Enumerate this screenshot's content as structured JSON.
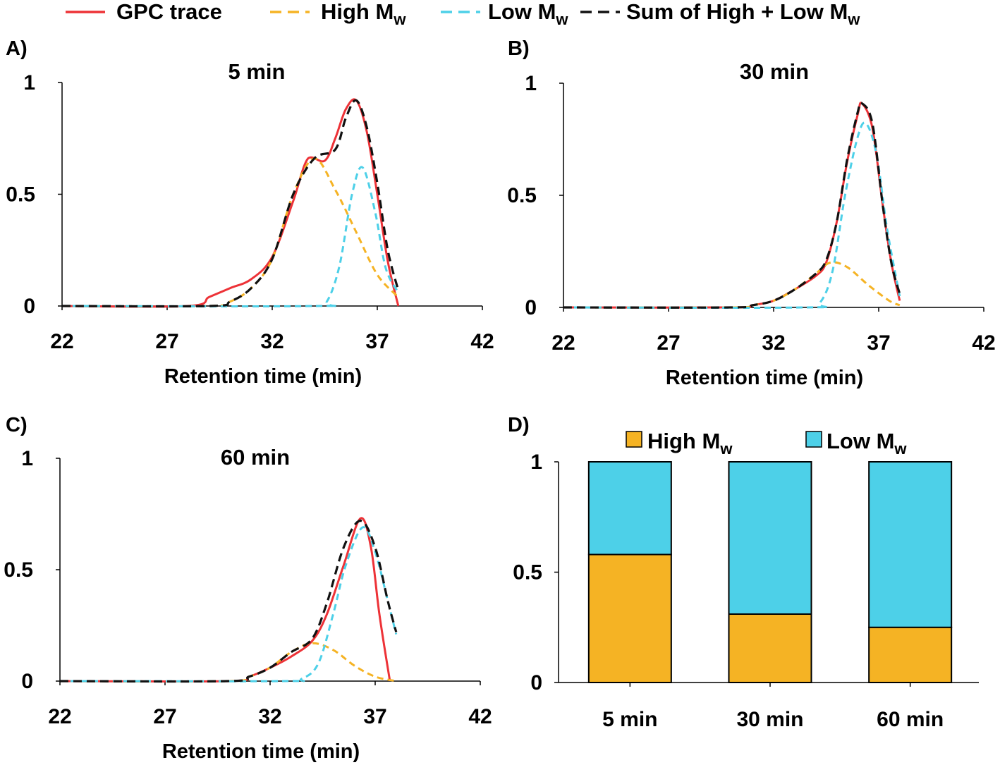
{
  "legend": [
    {
      "key": "gpc",
      "label": "GPC trace",
      "label_main": "GPC trace",
      "label_sub": "",
      "label_tail": "",
      "color": "#ED3237",
      "dash": "solid"
    },
    {
      "key": "high",
      "label": "High Mw",
      "label_main": "High M",
      "label_sub": "w",
      "label_tail": "",
      "color": "#F5B324",
      "dash": "dashed"
    },
    {
      "key": "low",
      "label": "Low Mw",
      "label_main": "Low M",
      "label_sub": "w",
      "label_tail": "",
      "color": "#4DD0E8",
      "dash": "dashed"
    },
    {
      "key": "sum",
      "label": "Sum of High + Low Mw",
      "label_main": "Sum of High + Low M",
      "label_sub": "w",
      "label_tail": "",
      "color": "#111111",
      "dash": "dashed"
    }
  ],
  "chart_data": [
    {
      "type": "line",
      "panel": "A)",
      "title": "5 min",
      "xlabel": "Retention time (min)",
      "ylabel": "",
      "xlim": [
        22,
        42
      ],
      "ylim": [
        0,
        1
      ],
      "xticks": [
        "22",
        "27",
        "32",
        "37",
        "42"
      ],
      "yticks": [
        "0",
        "0.5",
        "1"
      ],
      "series": [
        {
          "key": "gpc",
          "name": "GPC trace",
          "x": [
            22,
            28,
            29,
            30,
            31,
            32,
            33,
            33.7,
            34.5,
            35,
            35.5,
            36,
            36.5,
            37,
            37.5,
            38
          ],
          "y": [
            0,
            0,
            0.04,
            0.08,
            0.12,
            0.22,
            0.47,
            0.66,
            0.65,
            0.75,
            0.88,
            0.92,
            0.78,
            0.5,
            0.2,
            0
          ]
        },
        {
          "key": "high",
          "name": "High Mw",
          "x": [
            22,
            29,
            30,
            31,
            32,
            33,
            34,
            35,
            36,
            37,
            38
          ],
          "y": [
            0,
            0,
            0.02,
            0.08,
            0.21,
            0.5,
            0.66,
            0.52,
            0.33,
            0.14,
            0.04
          ]
        },
        {
          "key": "low",
          "name": "Low Mw",
          "x": [
            22,
            34,
            34.6,
            35.2,
            35.8,
            36.3,
            36.9,
            37.4,
            38
          ],
          "y": [
            0,
            0,
            0.02,
            0.18,
            0.5,
            0.62,
            0.42,
            0.17,
            0.06
          ]
        },
        {
          "key": "sum",
          "name": "Sum of High + Low Mw",
          "x": [
            22,
            29,
            30,
            31,
            32,
            33,
            34,
            35,
            35.5,
            36,
            36.5,
            37,
            37.5,
            38
          ],
          "y": [
            0,
            0,
            0.02,
            0.08,
            0.21,
            0.5,
            0.66,
            0.7,
            0.84,
            0.92,
            0.8,
            0.55,
            0.25,
            0.07
          ]
        }
      ]
    },
    {
      "type": "line",
      "panel": "B)",
      "title": "30 min",
      "xlabel": "Retention time (min)",
      "ylabel": "",
      "xlim": [
        22,
        42
      ],
      "ylim": [
        0,
        1
      ],
      "xticks": [
        "22",
        "27",
        "32",
        "37",
        "42"
      ],
      "yticks": [
        "0",
        "0.5",
        "1"
      ],
      "series": [
        {
          "key": "gpc",
          "name": "GPC trace",
          "x": [
            22,
            30,
            31,
            32,
            33,
            34,
            34.5,
            35,
            35.5,
            36,
            36.2,
            36.7,
            37.2,
            37.6,
            38
          ],
          "y": [
            0,
            0,
            0.01,
            0.03,
            0.08,
            0.14,
            0.2,
            0.38,
            0.65,
            0.86,
            0.91,
            0.8,
            0.45,
            0.2,
            0.03
          ]
        },
        {
          "key": "high",
          "name": "High Mw",
          "x": [
            22,
            30,
            31,
            32,
            33,
            34,
            34.7,
            35.5,
            36.5,
            37.5,
            38
          ],
          "y": [
            0,
            0,
            0.01,
            0.03,
            0.08,
            0.15,
            0.2,
            0.18,
            0.1,
            0.03,
            0.01
          ]
        },
        {
          "key": "low",
          "name": "Low Mw",
          "x": [
            22,
            33.5,
            34.2,
            34.8,
            35.4,
            36,
            36.4,
            36.9,
            37.4,
            38
          ],
          "y": [
            0,
            0,
            0.02,
            0.16,
            0.5,
            0.76,
            0.82,
            0.68,
            0.35,
            0.05
          ]
        },
        {
          "key": "sum",
          "name": "Sum of High + Low Mw",
          "x": [
            22,
            30,
            31,
            32,
            33,
            34,
            34.5,
            35,
            35.5,
            36,
            36.2,
            36.7,
            37.2,
            37.6,
            38
          ],
          "y": [
            0,
            0,
            0.01,
            0.03,
            0.08,
            0.15,
            0.21,
            0.38,
            0.66,
            0.87,
            0.91,
            0.82,
            0.45,
            0.2,
            0.06
          ]
        }
      ]
    },
    {
      "type": "line",
      "panel": "C)",
      "title": "60 min",
      "xlabel": "Retention time (min)",
      "ylabel": "",
      "xlim": [
        22,
        42
      ],
      "ylim": [
        0,
        1
      ],
      "xticks": [
        "22",
        "27",
        "32",
        "37",
        "42"
      ],
      "yticks": [
        "0",
        "0.5",
        "1"
      ],
      "series": [
        {
          "key": "gpc",
          "name": "GPC trace",
          "x": [
            22,
            30,
            31,
            32,
            33,
            34,
            34.7,
            35.5,
            36.3,
            36.8,
            37.2,
            37.7
          ],
          "y": [
            0,
            0,
            0.02,
            0.06,
            0.11,
            0.18,
            0.3,
            0.52,
            0.73,
            0.6,
            0.3,
            0
          ]
        },
        {
          "key": "high",
          "name": "High Mw",
          "x": [
            22,
            30,
            31,
            32,
            33,
            34,
            35,
            36,
            37,
            38
          ],
          "y": [
            0,
            0,
            0.02,
            0.06,
            0.13,
            0.17,
            0.14,
            0.07,
            0.02,
            0
          ]
        },
        {
          "key": "low",
          "name": "Low Mw",
          "x": [
            22,
            32.5,
            33.5,
            34.3,
            35,
            35.6,
            36.4,
            37,
            37.6,
            38
          ],
          "y": [
            0,
            0,
            0.01,
            0.08,
            0.3,
            0.52,
            0.69,
            0.58,
            0.36,
            0.21
          ]
        },
        {
          "key": "sum",
          "name": "Sum of High + Low Mw",
          "x": [
            22,
            30,
            31,
            32,
            33,
            34,
            34.7,
            35.5,
            36.3,
            37,
            37.6,
            38
          ],
          "y": [
            0,
            0,
            0.02,
            0.06,
            0.13,
            0.19,
            0.35,
            0.6,
            0.72,
            0.6,
            0.36,
            0.22
          ]
        }
      ]
    },
    {
      "type": "bar",
      "stacked": true,
      "panel": "D)",
      "title": "",
      "xlabel": "",
      "ylabel": "",
      "ylim": [
        0,
        1
      ],
      "yticks": [
        "0",
        "0.5",
        "1"
      ],
      "categories": [
        "5 min",
        "30 min",
        "60 min"
      ],
      "legend": [
        {
          "label_main": "High M",
          "label_sub": "w",
          "color": "#F5B324"
        },
        {
          "label_main": "Low M",
          "label_sub": "w",
          "color": "#4DD0E8"
        }
      ],
      "series": [
        {
          "name": "High Mw",
          "color": "#F5B324",
          "values": [
            0.58,
            0.31,
            0.25
          ]
        },
        {
          "name": "Low Mw",
          "color": "#4DD0E8",
          "values": [
            0.42,
            0.69,
            0.75
          ]
        }
      ]
    }
  ]
}
